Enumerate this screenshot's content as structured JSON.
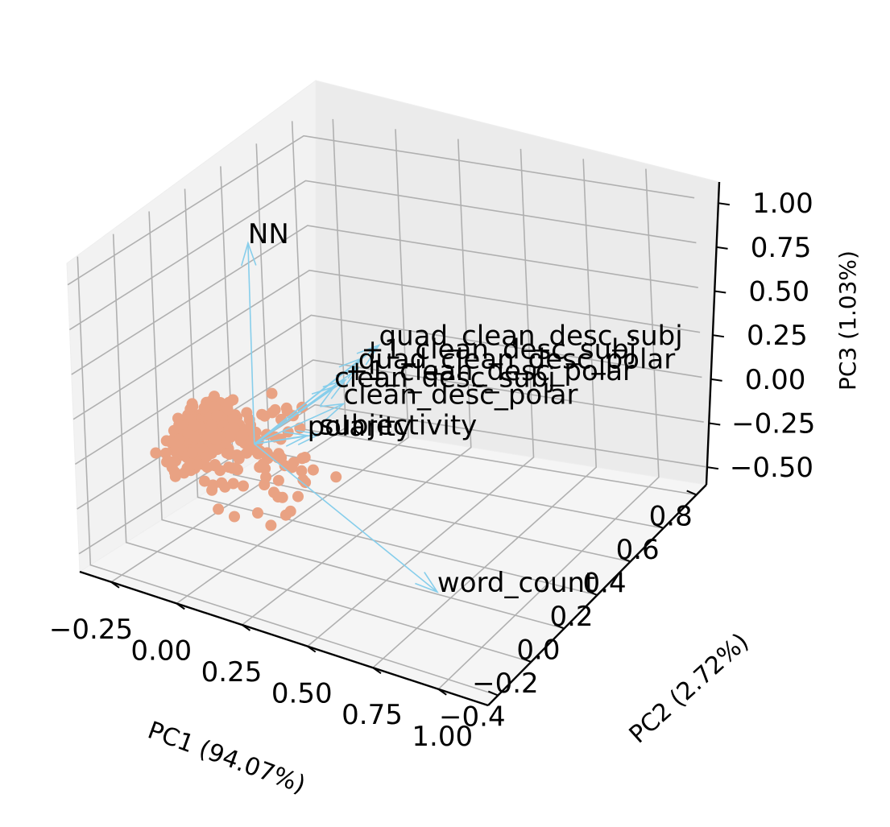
{
  "chart_data": {
    "type": "scatter",
    "projection": "3d",
    "title": "",
    "axes": {
      "x": {
        "label": "PC1 (94.07%)",
        "ticks": [
          "−0.25",
          "0.00",
          "0.25",
          "0.50",
          "0.75",
          "1.00"
        ],
        "tick_values": [
          -0.25,
          0.0,
          0.25,
          0.5,
          0.75,
          1.0
        ],
        "range": [
          -0.37,
          1.19
        ]
      },
      "y": {
        "label": "PC2 (2.72%)",
        "ticks": [
          "−0.4",
          "−0.2",
          "0.0",
          "0.2",
          "0.4",
          "0.6",
          "0.8"
        ],
        "tick_values": [
          -0.4,
          -0.2,
          0.0,
          0.2,
          0.4,
          0.6,
          0.8
        ],
        "range": [
          -0.46,
          0.86
        ]
      },
      "z": {
        "label": "PC3 (1.03%)",
        "ticks": [
          "−0.50",
          "−0.25",
          "0.00",
          "0.25",
          "0.50",
          "0.75",
          "1.00"
        ],
        "tick_values": [
          -0.5,
          -0.25,
          0.0,
          0.25,
          0.5,
          0.75,
          1.0
        ],
        "range": [
          -0.6,
          1.12
        ]
      }
    },
    "grid": true,
    "colors": {
      "points": "#e9a283",
      "arrows": "#87ceeb",
      "pane": "#f2f2f2",
      "grid": "#b0b0b0",
      "text": "#000000"
    },
    "loadings": [
      {
        "label": "NN",
        "vector": [
          -0.12,
          0.18,
          0.95
        ]
      },
      {
        "label": "quad_clean_desc_subj",
        "vector": [
          0.25,
          0.35,
          0.45
        ]
      },
      {
        "label": "+1_clean_desc_subj",
        "vector": [
          0.2,
          0.32,
          0.37
        ]
      },
      {
        "label": "quad_clean_desc_polar",
        "vector": [
          0.18,
          0.33,
          0.3
        ]
      },
      {
        "label": "+1_clean_desc_polar",
        "vector": [
          0.15,
          0.3,
          0.24
        ]
      },
      {
        "label": "clean_desc_subj",
        "vector": [
          0.12,
          0.28,
          0.2
        ]
      },
      {
        "label": "clean_desc_polar",
        "vector": [
          0.16,
          0.27,
          0.13
        ]
      },
      {
        "label": "subjectivity",
        "vector": [
          0.14,
          0.16,
          0.02
        ]
      },
      {
        "label": "polarity",
        "vector": [
          0.1,
          0.15,
          0.0
        ]
      },
      {
        "label": "word_count",
        "vector": [
          0.72,
          -0.05,
          -0.45
        ]
      }
    ],
    "point_style": "filled circles",
    "point_count_approx": 400
  }
}
